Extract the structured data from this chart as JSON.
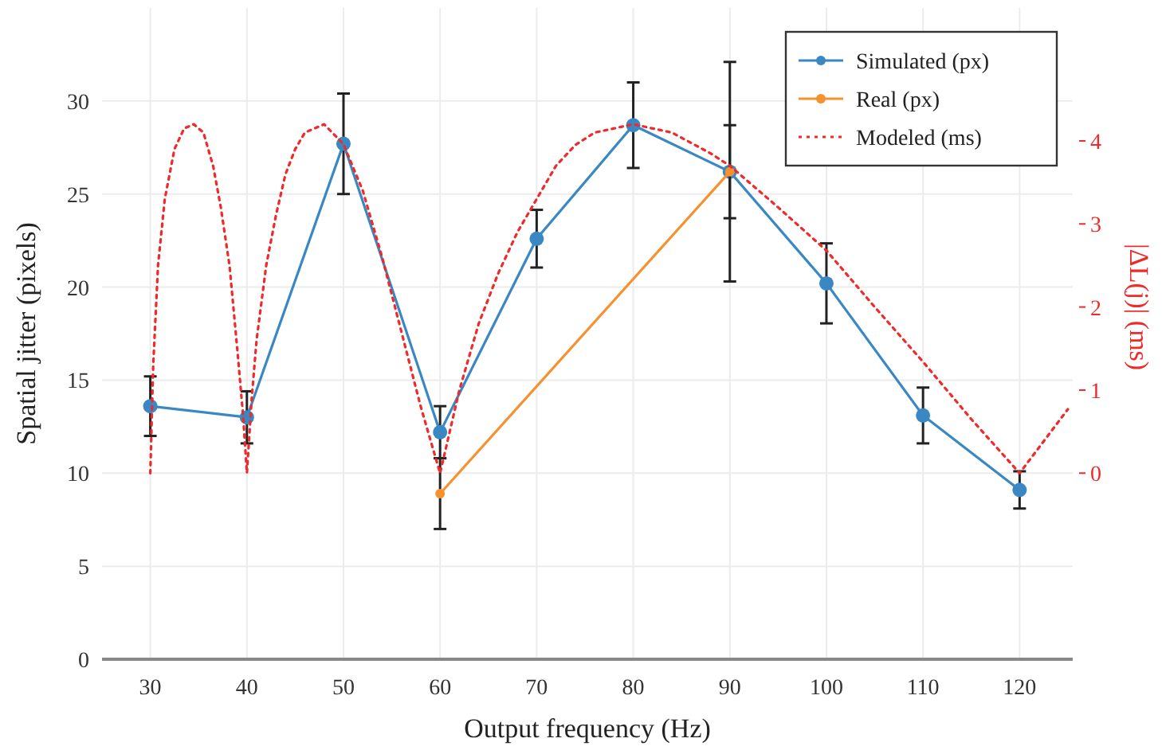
{
  "chart_data": {
    "type": "line",
    "xlabel": "Output frequency (Hz)",
    "ylabel": "Spatial jitter (pixels)",
    "y2label": "|ΔL(j)| (ms)",
    "xlim": [
      25,
      125.5
    ],
    "xticks": [
      30,
      40,
      50,
      60,
      70,
      80,
      90,
      100,
      110,
      120
    ],
    "ylim": [
      0,
      35
    ],
    "yticks": [
      0,
      5,
      10,
      15,
      20,
      25,
      30
    ],
    "y2lim": [
      -2.24,
      5.6
    ],
    "y2ticks": [
      0,
      1,
      2,
      3,
      4
    ],
    "grid": true,
    "legend": "top right",
    "series": [
      {
        "name": "Simulated (px)",
        "color": "#3a88c3",
        "marker": "circle",
        "line_style": "solid",
        "x": [
          30,
          40,
          50,
          60,
          70,
          80,
          90,
          100,
          110,
          120
        ],
        "values": [
          13.6,
          13.0,
          27.7,
          12.2,
          22.6,
          28.7,
          26.2,
          20.2,
          13.1,
          9.1
        ],
        "errors": [
          1.6,
          1.4,
          2.7,
          1.4,
          1.55,
          2.3,
          2.5,
          2.15,
          1.5,
          1.0
        ]
      },
      {
        "name": "Real (px)",
        "color": "#f5922f",
        "marker": "circle",
        "line_style": "solid",
        "x": [
          60,
          90
        ],
        "values": [
          8.9,
          26.2
        ],
        "errors": [
          1.9,
          5.9
        ]
      },
      {
        "name": "Modeled (ms)",
        "color": "#ee2a2a",
        "marker": "none",
        "line_style": "dotted",
        "axis": "y2",
        "x": [
          30,
          30.3,
          30.8,
          31.5,
          32.5,
          33.5,
          34.5,
          35.5,
          36.5,
          37.3,
          38.2,
          39,
          39.6,
          40,
          40.5,
          41,
          42,
          43,
          44,
          45,
          46,
          48,
          50,
          52,
          54,
          56,
          58,
          59,
          60,
          61,
          62,
          64,
          66,
          68,
          70,
          72,
          74,
          76,
          80,
          84,
          88,
          90,
          95,
          100,
          105,
          110,
          115,
          120,
          125
        ],
        "values": [
          0,
          1.3,
          2.5,
          3.3,
          3.9,
          4.15,
          4.2,
          4.1,
          3.7,
          3.2,
          2.5,
          1.5,
          0.7,
          0,
          0.9,
          1.6,
          2.5,
          3.1,
          3.6,
          3.9,
          4.1,
          4.2,
          3.96,
          3.4,
          2.6,
          1.7,
          0.8,
          0.4,
          0,
          0.5,
          1.0,
          1.8,
          2.4,
          2.9,
          3.3,
          3.7,
          3.95,
          4.1,
          4.2,
          4.1,
          3.85,
          3.7,
          3.2,
          2.68,
          2.0,
          1.34,
          0.65,
          0,
          0.77
        ]
      }
    ]
  }
}
